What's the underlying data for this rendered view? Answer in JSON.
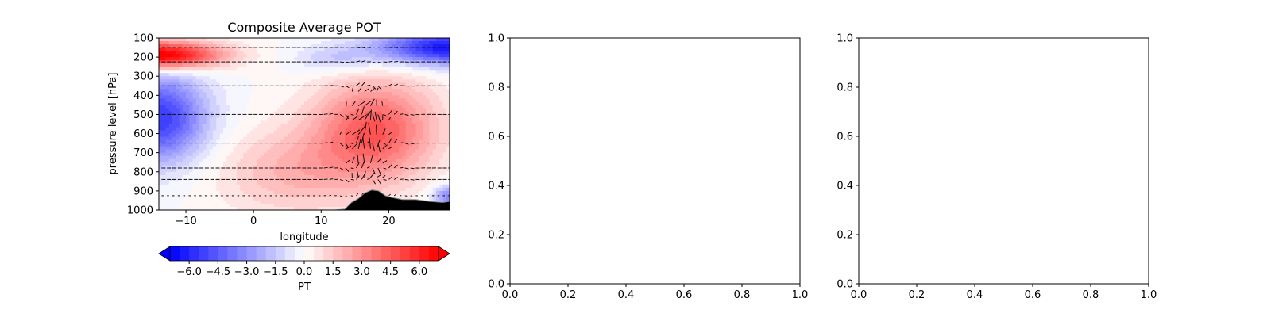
{
  "chart_data": [
    {
      "type": "heatmap",
      "title": "Composite Average POT",
      "xlabel": "longitude",
      "ylabel": "pressure level [hPa]",
      "xlim": [
        -14,
        29
      ],
      "ylim": [
        1000,
        100
      ],
      "y_inverted": true,
      "x_ticks": [
        -10,
        0,
        10,
        20
      ],
      "x_tick_labels": [
        "−10",
        "0",
        "10",
        "20"
      ],
      "y_ticks": [
        100,
        200,
        300,
        400,
        500,
        600,
        700,
        800,
        900,
        1000
      ],
      "y_tick_labels": [
        "100",
        "200",
        "300",
        "400",
        "500",
        "600",
        "700",
        "800",
        "900",
        "1000"
      ],
      "colormap": "bwr",
      "color_low": "#0000ff",
      "color_mid": "#ffffff",
      "color_high": "#ff0000",
      "value_range": [
        -7,
        7
      ],
      "overlay": "wind vectors",
      "terrain": {
        "color": "#000000",
        "longitude": [
          12,
          13.5,
          14.5,
          15.5,
          16.5,
          17.5,
          18.5,
          19.5,
          20.5,
          22,
          24,
          26,
          28,
          29
        ],
        "pressure": [
          1000,
          995,
          960,
          940,
          910,
          895,
          900,
          925,
          935,
          945,
          945,
          955,
          960,
          955
        ]
      },
      "colorbar": {
        "label": "PT",
        "orientation": "horizontal",
        "extend": "both",
        "range": [
          -7,
          7
        ],
        "step": 0.5,
        "ticks": [
          -6,
          -4.5,
          -3,
          -1.5,
          0,
          1.5,
          3,
          4.5,
          6
        ],
        "tick_labels": [
          "−6.0",
          "−4.5",
          "−3.0",
          "−1.5",
          "0.0",
          "1.5",
          "3.0",
          "4.5",
          "6.0"
        ]
      }
    },
    {
      "type": "line",
      "title": "",
      "xlim": [
        0,
        1
      ],
      "ylim": [
        0,
        1
      ],
      "x_ticks": [
        0,
        0.2,
        0.4,
        0.6,
        0.8,
        1
      ],
      "x_tick_labels": [
        "0.0",
        "0.2",
        "0.4",
        "0.6",
        "0.8",
        "1.0"
      ],
      "y_ticks": [
        0,
        0.2,
        0.4,
        0.6,
        0.8,
        1
      ],
      "y_tick_labels": [
        "0.0",
        "0.2",
        "0.4",
        "0.6",
        "0.8",
        "1.0"
      ],
      "series": []
    },
    {
      "type": "line",
      "title": "",
      "xlim": [
        0,
        1
      ],
      "ylim": [
        0,
        1
      ],
      "x_ticks": [
        0,
        0.2,
        0.4,
        0.6,
        0.8,
        1
      ],
      "x_tick_labels": [
        "0.0",
        "0.2",
        "0.4",
        "0.6",
        "0.8",
        "1.0"
      ],
      "y_ticks": [
        0,
        0.2,
        0.4,
        0.6,
        0.8,
        1
      ],
      "y_tick_labels": [
        "0.0",
        "0.2",
        "0.4",
        "0.6",
        "0.8",
        "1.0"
      ],
      "series": []
    }
  ]
}
